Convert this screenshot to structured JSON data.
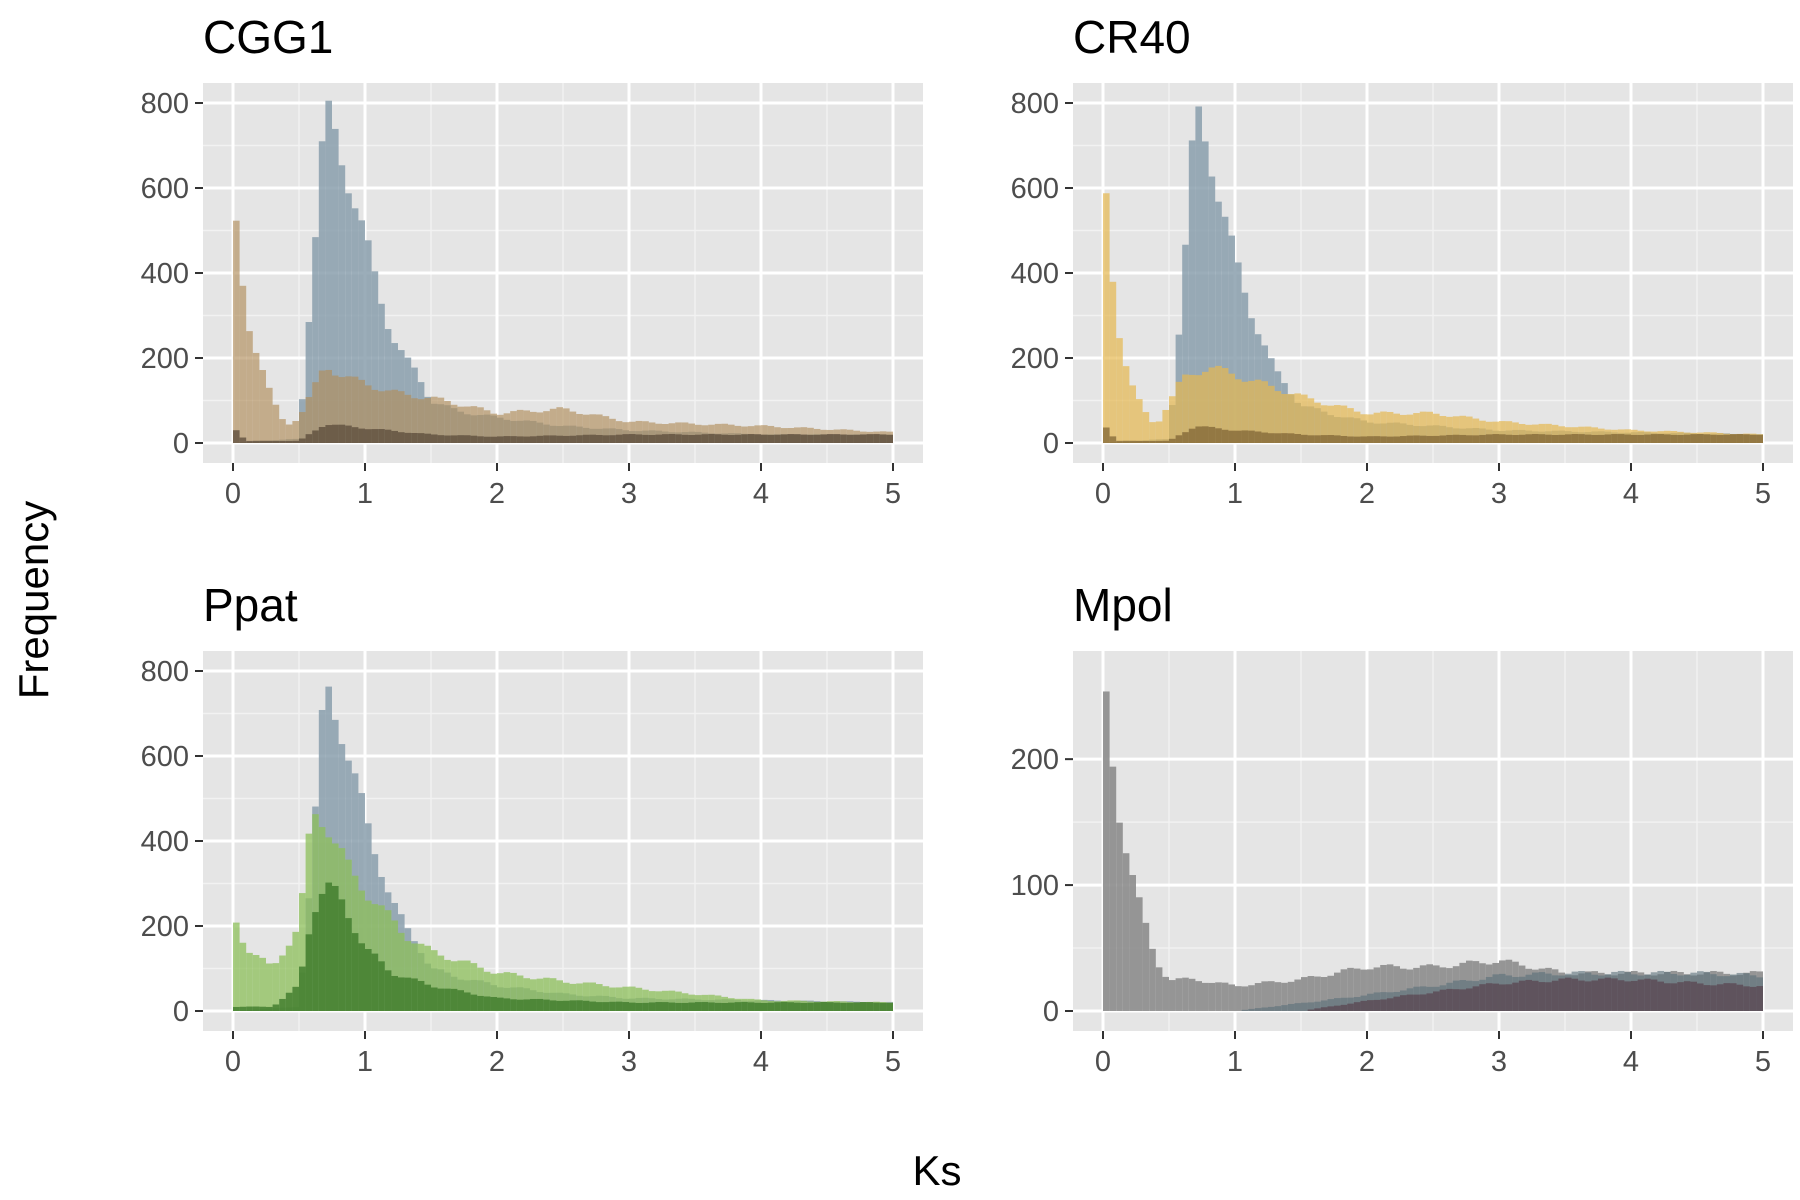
{
  "figure": {
    "xlabel": "Ks",
    "ylabel": "Frequency"
  },
  "chart_data": [
    {
      "type": "bar",
      "title": "CGG1",
      "xlim": [
        0,
        5
      ],
      "ylim": [
        0,
        800
      ],
      "xticks": [
        0,
        1,
        2,
        3,
        4,
        5
      ],
      "yticks": [
        0,
        200,
        400,
        600,
        800
      ],
      "grid": true,
      "series": [
        {
          "name": "",
          "color": "#8a9fad",
          "opacity": 0.85,
          "points": [
            [
              0.0,
              0
            ],
            [
              0.5,
              10
            ],
            [
              0.6,
              400
            ],
            [
              0.7,
              780
            ],
            [
              0.8,
              700
            ],
            [
              0.9,
              600
            ],
            [
              1.0,
              480
            ],
            [
              1.1,
              360
            ],
            [
              1.2,
              260
            ],
            [
              1.3,
              200
            ],
            [
              1.4,
              160
            ],
            [
              1.5,
              100
            ],
            [
              1.7,
              75
            ],
            [
              2.0,
              60
            ],
            [
              2.5,
              40
            ],
            [
              3.0,
              30
            ],
            [
              4.0,
              20
            ],
            [
              5.0,
              20
            ]
          ]
        },
        {
          "name": "",
          "color": "#b08d5a",
          "opacity": 0.65,
          "points": [
            [
              0.0,
              560
            ],
            [
              0.1,
              300
            ],
            [
              0.2,
              200
            ],
            [
              0.3,
              100
            ],
            [
              0.4,
              40
            ],
            [
              0.5,
              60
            ],
            [
              0.7,
              180
            ],
            [
              0.9,
              150
            ],
            [
              1.2,
              120
            ],
            [
              1.6,
              100
            ],
            [
              2.0,
              70
            ],
            [
              2.5,
              80
            ],
            [
              3.0,
              50
            ],
            [
              4.0,
              40
            ],
            [
              5.0,
              25
            ]
          ]
        },
        {
          "name": "",
          "color": "#5a4a3a",
          "opacity": 0.75,
          "points": [
            [
              0.0,
              40
            ],
            [
              0.1,
              5
            ],
            [
              0.5,
              5
            ],
            [
              0.7,
              45
            ],
            [
              1.0,
              35
            ],
            [
              1.5,
              20
            ],
            [
              2.0,
              15
            ],
            [
              3.0,
              20
            ],
            [
              4.0,
              20
            ],
            [
              5.0,
              20
            ]
          ]
        }
      ]
    },
    {
      "type": "bar",
      "title": "CR40",
      "xlim": [
        0,
        5
      ],
      "ylim": [
        0,
        800
      ],
      "xticks": [
        0,
        1,
        2,
        3,
        4,
        5
      ],
      "yticks": [
        0,
        200,
        400,
        600,
        800
      ],
      "grid": true,
      "series": [
        {
          "name": "",
          "color": "#8a9fad",
          "opacity": 0.85,
          "points": [
            [
              0.0,
              0
            ],
            [
              0.5,
              10
            ],
            [
              0.6,
              350
            ],
            [
              0.7,
              780
            ],
            [
              0.8,
              700
            ],
            [
              0.9,
              560
            ],
            [
              1.0,
              430
            ],
            [
              1.1,
              330
            ],
            [
              1.2,
              250
            ],
            [
              1.3,
              170
            ],
            [
              1.4,
              130
            ],
            [
              1.5,
              90
            ],
            [
              1.7,
              70
            ],
            [
              2.0,
              50
            ],
            [
              2.5,
              40
            ],
            [
              3.0,
              30
            ],
            [
              4.0,
              25
            ],
            [
              5.0,
              20
            ]
          ]
        },
        {
          "name": "",
          "color": "#e5b850",
          "opacity": 0.7,
          "points": [
            [
              0.0,
              660
            ],
            [
              0.1,
              300
            ],
            [
              0.2,
              150
            ],
            [
              0.3,
              80
            ],
            [
              0.4,
              40
            ],
            [
              0.6,
              150
            ],
            [
              0.8,
              180
            ],
            [
              1.2,
              140
            ],
            [
              1.6,
              100
            ],
            [
              2.0,
              70
            ],
            [
              2.5,
              70
            ],
            [
              3.0,
              50
            ],
            [
              4.0,
              30
            ],
            [
              5.0,
              20
            ]
          ]
        },
        {
          "name": "",
          "color": "#7a6030",
          "opacity": 0.7,
          "points": [
            [
              0.0,
              50
            ],
            [
              0.1,
              5
            ],
            [
              0.5,
              5
            ],
            [
              0.7,
              40
            ],
            [
              1.0,
              30
            ],
            [
              1.5,
              20
            ],
            [
              2.0,
              15
            ],
            [
              3.0,
              20
            ],
            [
              4.0,
              20
            ],
            [
              5.0,
              20
            ]
          ]
        }
      ]
    },
    {
      "type": "bar",
      "title": "Ppat",
      "xlim": [
        0,
        5
      ],
      "ylim": [
        0,
        800
      ],
      "xticks": [
        0,
        1,
        2,
        3,
        4,
        5
      ],
      "yticks": [
        0,
        200,
        400,
        600,
        800
      ],
      "grid": true,
      "series": [
        {
          "name": "",
          "color": "#8a9fad",
          "opacity": 0.85,
          "points": [
            [
              0.0,
              0
            ],
            [
              0.5,
              10
            ],
            [
              0.6,
              350
            ],
            [
              0.7,
              780
            ],
            [
              0.8,
              700
            ],
            [
              0.9,
              560
            ],
            [
              1.0,
              460
            ],
            [
              1.1,
              360
            ],
            [
              1.2,
              260
            ],
            [
              1.3,
              200
            ],
            [
              1.4,
              160
            ],
            [
              1.5,
              100
            ],
            [
              1.7,
              80
            ],
            [
              2.0,
              60
            ],
            [
              2.5,
              40
            ],
            [
              3.0,
              30
            ],
            [
              4.0,
              25
            ],
            [
              5.0,
              20
            ]
          ]
        },
        {
          "name": "",
          "color": "#8cbf5a",
          "opacity": 0.75,
          "points": [
            [
              0.0,
              230
            ],
            [
              0.1,
              150
            ],
            [
              0.3,
              100
            ],
            [
              0.5,
              200
            ],
            [
              0.6,
              460
            ],
            [
              0.7,
              450
            ],
            [
              0.9,
              320
            ],
            [
              1.1,
              250
            ],
            [
              1.3,
              180
            ],
            [
              1.5,
              140
            ],
            [
              2.0,
              90
            ],
            [
              2.5,
              70
            ],
            [
              3.0,
              55
            ],
            [
              3.5,
              40
            ],
            [
              4.0,
              25
            ],
            [
              5.0,
              20
            ]
          ]
        },
        {
          "name": "",
          "color": "#3d7a2a",
          "opacity": 0.8,
          "points": [
            [
              0.0,
              10
            ],
            [
              0.3,
              10
            ],
            [
              0.5,
              60
            ],
            [
              0.6,
              230
            ],
            [
              0.7,
              300
            ],
            [
              0.8,
              270
            ],
            [
              1.0,
              150
            ],
            [
              1.2,
              90
            ],
            [
              1.5,
              60
            ],
            [
              2.0,
              30
            ],
            [
              3.0,
              20
            ],
            [
              4.0,
              20
            ],
            [
              5.0,
              20
            ]
          ]
        }
      ]
    },
    {
      "type": "bar",
      "title": "Mpol",
      "xlim": [
        0,
        5
      ],
      "ylim": [
        0,
        270
      ],
      "xticks": [
        0,
        1,
        2,
        3,
        4,
        5
      ],
      "yticks": [
        0,
        100,
        200
      ],
      "grid": true,
      "series": [
        {
          "name": "",
          "color": "#8c8c8c",
          "opacity": 0.9,
          "points": [
            [
              0.0,
              265
            ],
            [
              0.1,
              170
            ],
            [
              0.2,
              120
            ],
            [
              0.3,
              75
            ],
            [
              0.4,
              40
            ],
            [
              0.5,
              25
            ],
            [
              0.7,
              25
            ],
            [
              1.0,
              20
            ],
            [
              1.5,
              25
            ],
            [
              2.0,
              35
            ],
            [
              2.5,
              35
            ],
            [
              3.0,
              40
            ],
            [
              3.5,
              30
            ],
            [
              4.0,
              30
            ],
            [
              5.0,
              30
            ]
          ]
        },
        {
          "name": "",
          "color": "#5a6f7a",
          "opacity": 0.6,
          "points": [
            [
              0.0,
              0
            ],
            [
              1.0,
              0
            ],
            [
              1.8,
              10
            ],
            [
              2.5,
              20
            ],
            [
              3.0,
              28
            ],
            [
              3.5,
              30
            ],
            [
              4.0,
              30
            ],
            [
              4.5,
              30
            ],
            [
              5.0,
              28
            ]
          ]
        },
        {
          "name": "",
          "color": "#5a4550",
          "opacity": 0.75,
          "points": [
            [
              0.0,
              0
            ],
            [
              1.5,
              0
            ],
            [
              2.0,
              8
            ],
            [
              2.5,
              15
            ],
            [
              3.0,
              22
            ],
            [
              3.5,
              25
            ],
            [
              4.0,
              25
            ],
            [
              4.5,
              22
            ],
            [
              5.0,
              20
            ]
          ]
        }
      ]
    }
  ]
}
